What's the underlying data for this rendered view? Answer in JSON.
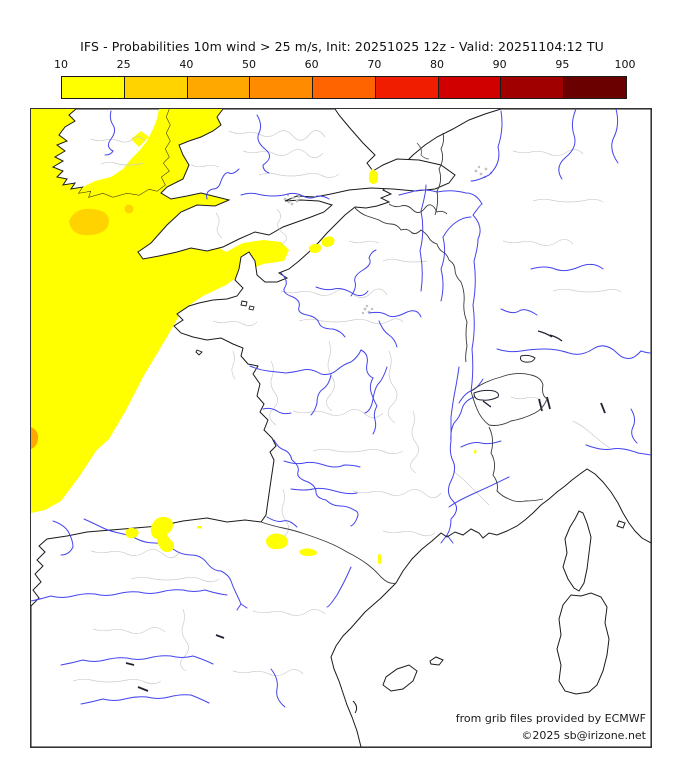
{
  "title": "IFS - Probabilities 10m wind > 25 m/s, Init: 20251025 12z - Valid: 20251104:12 TU",
  "colorbar": {
    "tick_labels": [
      "10",
      "25",
      "40",
      "50",
      "60",
      "70",
      "80",
      "90",
      "95",
      "100"
    ],
    "segment_colors": [
      "#ffff00",
      "#ffd300",
      "#ffa800",
      "#ff8c00",
      "#ff6400",
      "#f11d00",
      "#d00000",
      "#a00000",
      "#6b0000"
    ],
    "border_color": "#1a1a1a",
    "units": "%"
  },
  "map": {
    "sea_color": "#ffffff",
    "land_color": "#ffffff",
    "coast_color": "#1a1a1a",
    "country_border_color": "#3a3a3a",
    "admin_boundary_color": "#cccccc",
    "river_color": "#4444ee",
    "prob_10_25_color": "#ffff00",
    "prob_25_40_color": "#ffd300",
    "prob_40_50_color": "#ffa800"
  },
  "attribution": {
    "line1": "from grib files provided by ECMWF",
    "line2": "©2025 sb@irizone.net"
  }
}
